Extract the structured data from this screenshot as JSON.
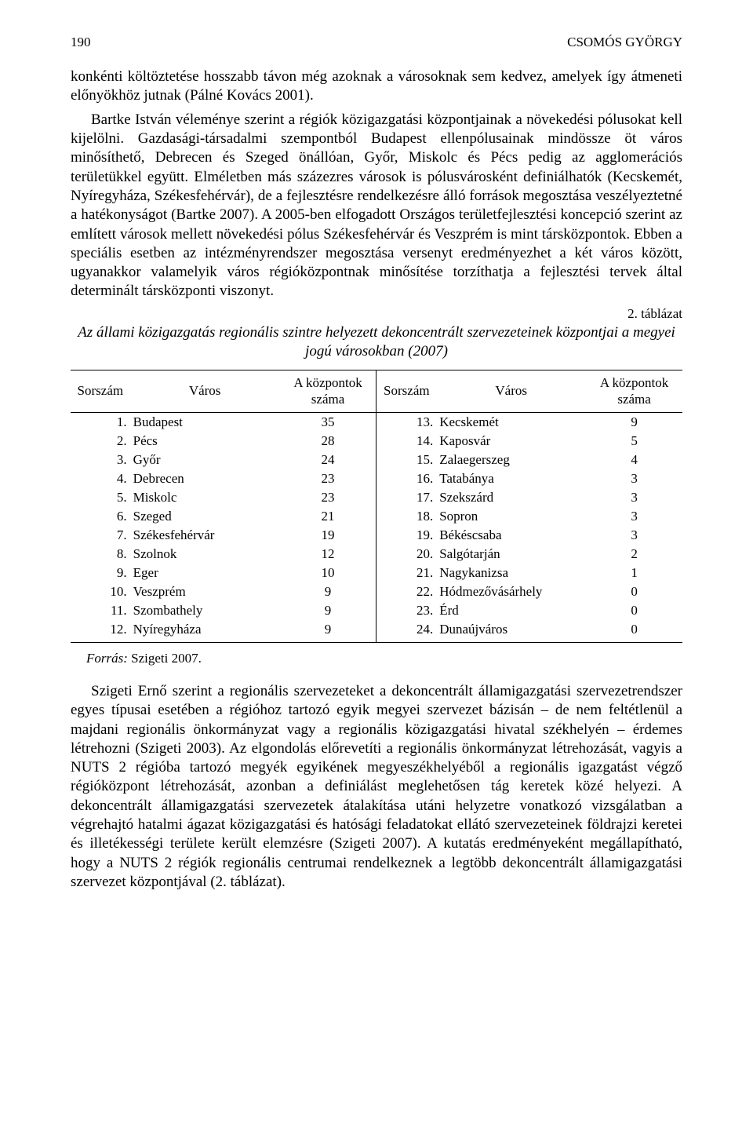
{
  "header": {
    "page_number": "190",
    "running_head": "CSOMÓS GYÖRGY"
  },
  "para1": "konkénti költöztetése hosszabb távon még azoknak a városoknak sem kedvez, amelyek így átmeneti előnyökhöz jutnak (Pálné Kovács 2001).",
  "para2": "Bartke István véleménye szerint a régiók közigazgatási központjainak a növekedési pólusokat kell kijelölni. Gazdasági-társadalmi szempontból Budapest ellenpólusainak mindössze öt város minősíthető, Debrecen és Szeged önállóan, Győr, Miskolc és Pécs pedig az agglomerációs területükkel együtt. Elméletben más százezres városok is pólusvárosként definiálhatók (Kecskemét, Nyíregyháza, Székesfehérvár), de a fejlesztésre rendelkezésre álló források megosztása veszélyeztetné a hatékonyságot (Bartke 2007). A 2005-ben elfogadott Országos területfejlesztési koncepció szerint az említett városok mellett növekedési pólus Székesfehérvár és Veszprém is mint társközpontok. Ebben a speciális esetben az intézményrendszer megosztása versenyt eredményezhet a két város között, ugyanakkor valamelyik város régióközpontnak minősítése torzíthatja a fejlesztési tervek által determinált társközponti viszonyt.",
  "table": {
    "number": "2. táblázat",
    "caption": "Az állami közigazgatás regionális szintre helyezett dekoncentrált szervezeteinek központjai a megyei jogú városokban (2007)",
    "head": {
      "sorszam": "Sorszám",
      "varos": "Város",
      "kozpont": "A központok száma"
    },
    "rows": [
      {
        "n1": "1.",
        "c1": "Budapest",
        "v1": "35",
        "n2": "13.",
        "c2": "Kecskemét",
        "v2": "9"
      },
      {
        "n1": "2.",
        "c1": "Pécs",
        "v1": "28",
        "n2": "14.",
        "c2": "Kaposvár",
        "v2": "5"
      },
      {
        "n1": "3.",
        "c1": "Győr",
        "v1": "24",
        "n2": "15.",
        "c2": "Zalaegerszeg",
        "v2": "4"
      },
      {
        "n1": "4.",
        "c1": "Debrecen",
        "v1": "23",
        "n2": "16.",
        "c2": "Tatabánya",
        "v2": "3"
      },
      {
        "n1": "5.",
        "c1": "Miskolc",
        "v1": "23",
        "n2": "17.",
        "c2": "Szekszárd",
        "v2": "3"
      },
      {
        "n1": "6.",
        "c1": "Szeged",
        "v1": "21",
        "n2": "18.",
        "c2": "Sopron",
        "v2": "3"
      },
      {
        "n1": "7.",
        "c1": "Székesfehérvár",
        "v1": "19",
        "n2": "19.",
        "c2": "Békéscsaba",
        "v2": "3"
      },
      {
        "n1": "8.",
        "c1": "Szolnok",
        "v1": "12",
        "n2": "20.",
        "c2": "Salgótarján",
        "v2": "2"
      },
      {
        "n1": "9.",
        "c1": "Eger",
        "v1": "10",
        "n2": "21.",
        "c2": "Nagykanizsa",
        "v2": "1"
      },
      {
        "n1": "10.",
        "c1": "Veszprém",
        "v1": "9",
        "n2": "22.",
        "c2": "Hódmezővásárhely",
        "v2": "0"
      },
      {
        "n1": "11.",
        "c1": "Szombathely",
        "v1": "9",
        "n2": "23.",
        "c2": "Érd",
        "v2": "0"
      },
      {
        "n1": "12.",
        "c1": "Nyíregyháza",
        "v1": "9",
        "n2": "24.",
        "c2": "Dunaújváros",
        "v2": "0"
      }
    ],
    "source_label": "Forrás:",
    "source_value": " Szigeti 2007."
  },
  "para3": "Szigeti Ernő szerint a regionális szervezeteket a dekoncentrált államigazgatási szervezetrendszer egyes típusai esetében a régióhoz tartozó egyik megyei szervezet bázisán – de nem feltétlenül a majdani regionális önkormányzat vagy a regionális közigazgatási hivatal székhelyén – érdemes létrehozni (Szigeti 2003). Az elgondolás előrevetíti a regionális önkormányzat létrehozását, vagyis a NUTS 2 régióba tartozó megyék egyikének megyeszékhelyéből a regionális igazgatást végző régióközpont létrehozását, azonban a definiálást meglehetősen tág keretek közé helyezi. A dekoncentrált államigazgatási szervezetek átalakítása utáni helyzetre vonatkozó vizsgálatban a végrehajtó hatalmi ágazat közigazgatási és hatósági feladatokat ellátó szervezeteinek földrajzi keretei és illetékességi területe került elemzésre (Szigeti 2007). A kutatás eredményeként megállapítható, hogy a NUTS 2 régiók regionális centrumai rendelkeznek a legtöbb dekoncentrált államigazgatási szervezet központjával (2. táblázat)."
}
